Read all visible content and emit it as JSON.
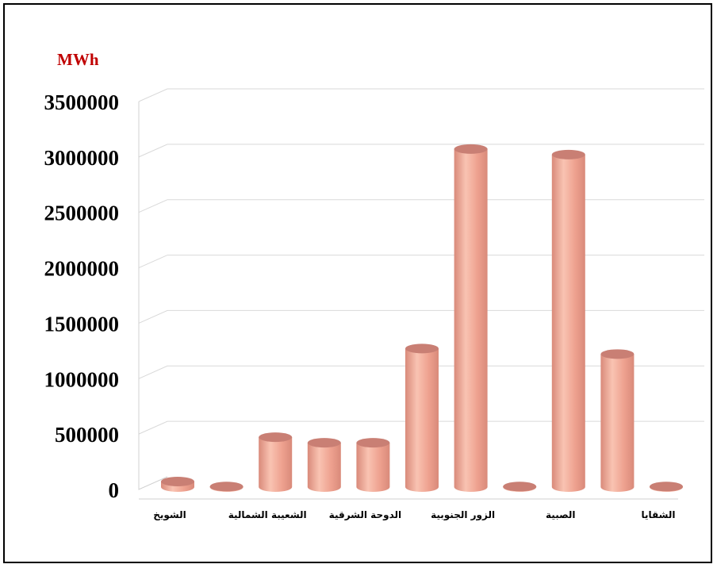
{
  "colors": {
    "bar_top": "#c97f74",
    "bar_light": "#f9c3b2",
    "bar_mid": "#eea18f",
    "bar_dark": "#d98a7a",
    "unit_color": "#c00000",
    "grid": "#d9d9d9"
  },
  "chart_data": {
    "type": "bar",
    "unit_label": "MWh",
    "categories": [
      "الشويخ",
      "",
      "الشعيبة الشمالية",
      "",
      "الدوحة الشرقية",
      "",
      "الزور الجنوبية",
      "",
      "الصبية",
      "",
      "الشقايا"
    ],
    "values": [
      50000,
      5000,
      450000,
      400000,
      400000,
      1250000,
      3050000,
      5000,
      3000000,
      1200000,
      5000
    ],
    "ylim": [
      0,
      3500000
    ],
    "yticks": [
      "0",
      "500000",
      "1000000",
      "1500000",
      "2000000",
      "2500000",
      "3000000",
      "3500000"
    ],
    "grid": true,
    "legend": "none"
  }
}
